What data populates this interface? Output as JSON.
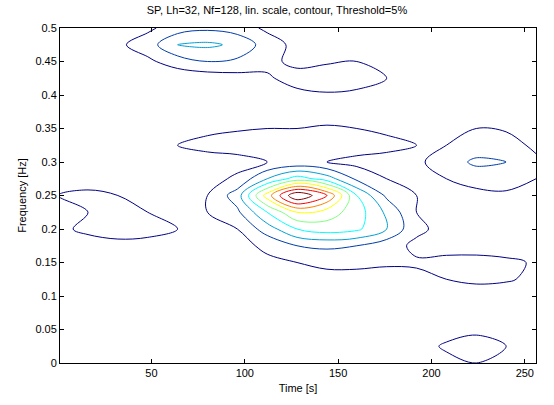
{
  "chart_data": {
    "type": "contour",
    "title": "SP, Lh=32, Nf=128, lin. scale, contour, Threshold=5%",
    "x_label": "Time [s]",
    "y_label": "Frequency [Hz]",
    "x": [
      0,
      16,
      32,
      48,
      64,
      80,
      96,
      112,
      128,
      144,
      160,
      176,
      192,
      208,
      224,
      240,
      256
    ],
    "y": [
      0,
      0.025,
      0.05,
      0.075,
      0.1,
      0.125,
      0.15,
      0.175,
      0.2,
      0.225,
      0.25,
      0.275,
      0.3,
      0.325,
      0.35,
      0.375,
      0.4,
      0.425,
      0.45,
      0.475,
      0.5
    ],
    "z": [
      [
        0.02,
        0.03,
        0.05,
        0.04,
        0.02,
        0.02,
        0.03,
        0.04,
        0.03,
        0.02,
        0.03,
        0.04,
        0.05,
        0.08,
        0.1,
        0.08,
        0.04
      ],
      [
        0.03,
        0.05,
        0.07,
        0.06,
        0.04,
        0.03,
        0.05,
        0.06,
        0.05,
        0.04,
        0.04,
        0.05,
        0.07,
        0.11,
        0.14,
        0.1,
        0.05
      ],
      [
        0.04,
        0.05,
        0.06,
        0.05,
        0.04,
        0.05,
        0.08,
        0.09,
        0.1,
        0.08,
        0.05,
        0.04,
        0.05,
        0.07,
        0.08,
        0.06,
        0.04
      ],
      [
        0.06,
        0.07,
        0.06,
        0.04,
        0.03,
        0.04,
        0.06,
        0.07,
        0.08,
        0.07,
        0.05,
        0.03,
        0.03,
        0.04,
        0.05,
        0.04,
        0.03
      ],
      [
        0.08,
        0.09,
        0.08,
        0.06,
        0.04,
        0.03,
        0.04,
        0.05,
        0.07,
        0.09,
        0.08,
        0.05,
        0.04,
        0.04,
        0.05,
        0.05,
        0.04
      ],
      [
        0.05,
        0.06,
        0.05,
        0.04,
        0.03,
        0.04,
        0.05,
        0.06,
        0.06,
        0.07,
        0.07,
        0.07,
        0.08,
        0.1,
        0.12,
        0.11,
        0.08
      ],
      [
        0.09,
        0.1,
        0.09,
        0.08,
        0.09,
        0.1,
        0.09,
        0.08,
        0.1,
        0.12,
        0.12,
        0.11,
        0.11,
        0.13,
        0.14,
        0.12,
        0.09
      ],
      [
        0.05,
        0.06,
        0.06,
        0.05,
        0.04,
        0.05,
        0.07,
        0.12,
        0.2,
        0.22,
        0.2,
        0.14,
        0.08,
        0.06,
        0.05,
        0.05,
        0.04
      ],
      [
        0.08,
        0.12,
        0.16,
        0.15,
        0.1,
        0.07,
        0.1,
        0.25,
        0.4,
        0.45,
        0.42,
        0.3,
        0.12,
        0.07,
        0.05,
        0.06,
        0.05
      ],
      [
        0.07,
        0.1,
        0.12,
        0.1,
        0.08,
        0.1,
        0.18,
        0.4,
        0.6,
        0.55,
        0.45,
        0.28,
        0.1,
        0.06,
        0.05,
        0.05,
        0.04
      ],
      [
        0.1,
        0.12,
        0.1,
        0.08,
        0.07,
        0.1,
        0.25,
        0.65,
        1.0,
        0.8,
        0.4,
        0.18,
        0.1,
        0.08,
        0.07,
        0.08,
        0.06
      ],
      [
        0.05,
        0.06,
        0.05,
        0.04,
        0.04,
        0.06,
        0.12,
        0.3,
        0.45,
        0.35,
        0.18,
        0.1,
        0.08,
        0.1,
        0.14,
        0.15,
        0.1
      ],
      [
        0.04,
        0.05,
        0.04,
        0.03,
        0.03,
        0.04,
        0.06,
        0.1,
        0.12,
        0.1,
        0.07,
        0.06,
        0.08,
        0.15,
        0.22,
        0.2,
        0.12
      ],
      [
        0.05,
        0.04,
        0.04,
        0.05,
        0.1,
        0.14,
        0.15,
        0.14,
        0.13,
        0.14,
        0.15,
        0.13,
        0.1,
        0.1,
        0.14,
        0.14,
        0.08
      ],
      [
        0.08,
        0.09,
        0.05,
        0.04,
        0.05,
        0.07,
        0.09,
        0.1,
        0.1,
        0.11,
        0.1,
        0.08,
        0.07,
        0.08,
        0.1,
        0.09,
        0.05
      ],
      [
        0.03,
        0.04,
        0.03,
        0.02,
        0.03,
        0.04,
        0.04,
        0.05,
        0.05,
        0.06,
        0.05,
        0.04,
        0.05,
        0.06,
        0.07,
        0.06,
        0.04
      ],
      [
        0.02,
        0.03,
        0.04,
        0.03,
        0.02,
        0.03,
        0.04,
        0.06,
        0.08,
        0.09,
        0.08,
        0.06,
        0.05,
        0.07,
        0.09,
        0.08,
        0.05
      ],
      [
        0.04,
        0.08,
        0.1,
        0.06,
        0.03,
        0.04,
        0.06,
        0.09,
        0.13,
        0.15,
        0.14,
        0.1,
        0.08,
        0.09,
        0.1,
        0.08,
        0.05
      ],
      [
        0.03,
        0.05,
        0.06,
        0.08,
        0.15,
        0.2,
        0.18,
        0.12,
        0.08,
        0.09,
        0.1,
        0.08,
        0.06,
        0.05,
        0.06,
        0.05,
        0.03
      ],
      [
        0.02,
        0.04,
        0.08,
        0.15,
        0.3,
        0.32,
        0.28,
        0.15,
        0.07,
        0.05,
        0.05,
        0.04,
        0.03,
        0.03,
        0.03,
        0.03,
        0.02
      ],
      [
        0.01,
        0.02,
        0.04,
        0.08,
        0.15,
        0.18,
        0.15,
        0.08,
        0.04,
        0.03,
        0.03,
        0.02,
        0.02,
        0.02,
        0.02,
        0.02,
        0.01
      ]
    ],
    "zlim": [
      0,
      1
    ],
    "xlim": [
      1,
      256
    ],
    "xticks": [
      50,
      100,
      150,
      200,
      250
    ],
    "ylim": [
      0,
      0.5
    ],
    "yticks": [
      0,
      0.05,
      0.1,
      0.15,
      0.2,
      0.25,
      0.3,
      0.35,
      0.4,
      0.45,
      0.5
    ],
    "grid": false
  }
}
